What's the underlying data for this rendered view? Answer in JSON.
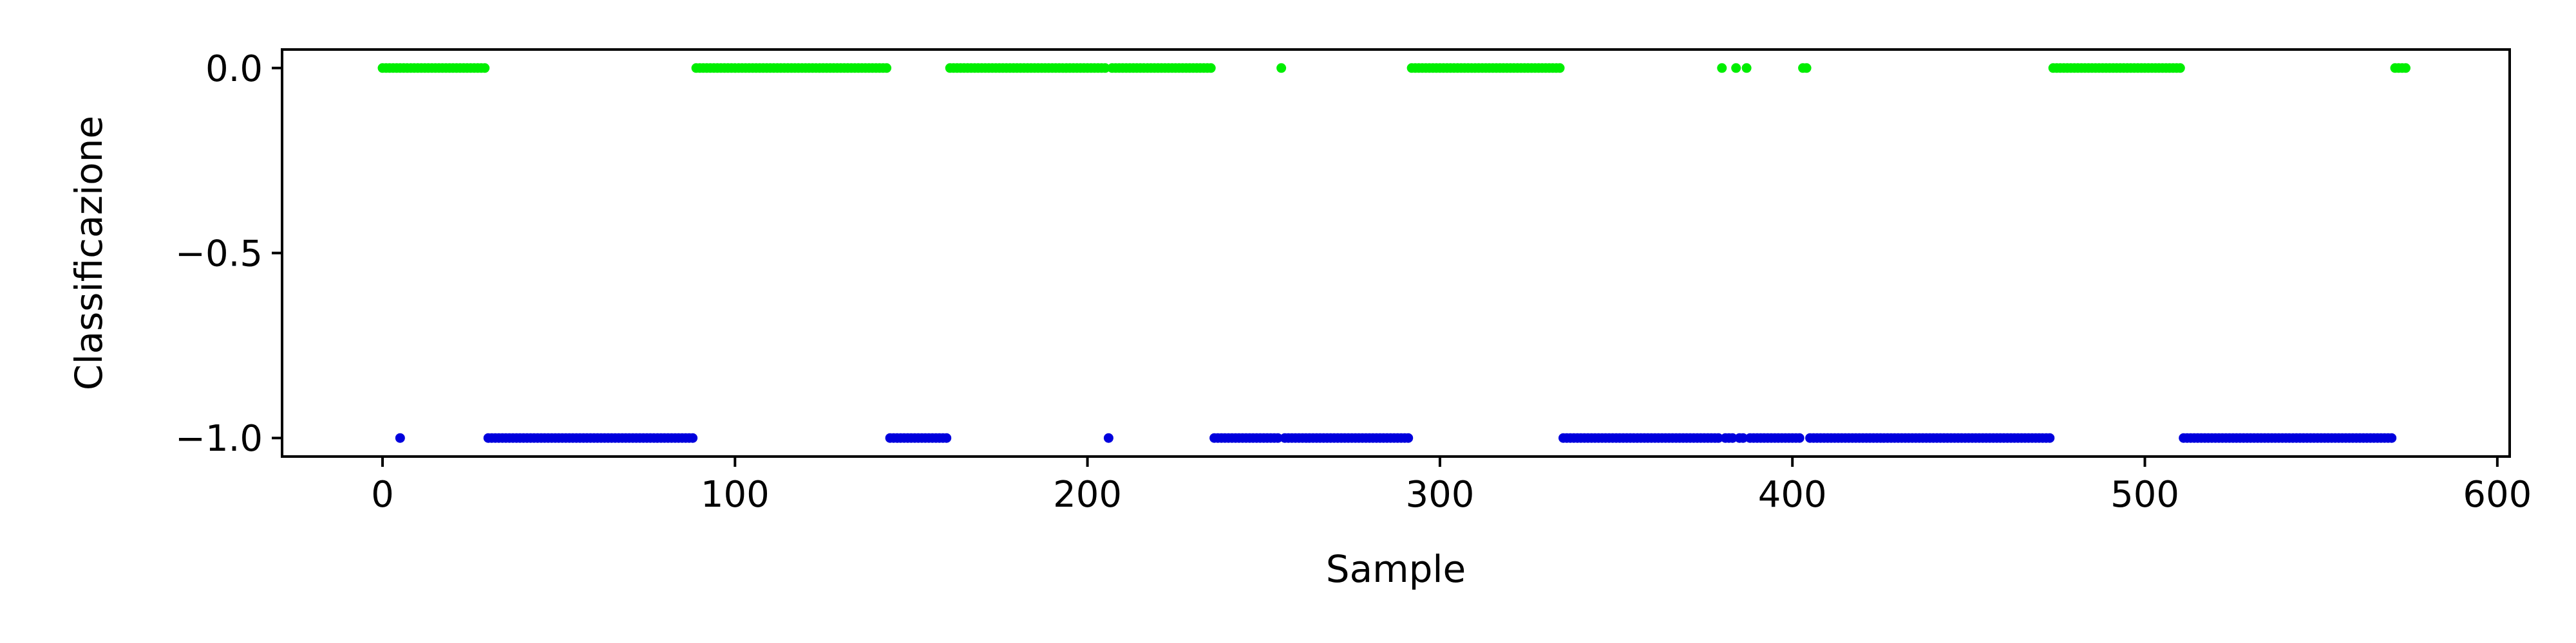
{
  "chart_data": {
    "type": "scatter",
    "title": "",
    "xlabel": "Sample",
    "ylabel": "Classificazione",
    "xlim": [
      -28.5,
      603.5
    ],
    "ylim": [
      -1.05,
      0.05
    ],
    "xticks": [
      0,
      100,
      200,
      300,
      400,
      500,
      600
    ],
    "xtick_labels": [
      "0",
      "100",
      "200",
      "300",
      "400",
      "500",
      "600"
    ],
    "yticks": [
      0.0,
      -0.5,
      -1.0
    ],
    "ytick_labels": [
      "0.0",
      "−0.5",
      "−1.0"
    ],
    "grid": false,
    "legend": "none",
    "series": [
      {
        "color": "#00ee00",
        "y": 0.0,
        "x": [
          0,
          1,
          2,
          3,
          4,
          5,
          6,
          7,
          8,
          9,
          10,
          11,
          12,
          13,
          14,
          15,
          16,
          17,
          18,
          19,
          20,
          21,
          22,
          23,
          24,
          25,
          26,
          27,
          28,
          29,
          89,
          90,
          91,
          92,
          93,
          94,
          95,
          96,
          97,
          98,
          99,
          100,
          101,
          102,
          103,
          104,
          105,
          106,
          107,
          108,
          109,
          110,
          111,
          112,
          113,
          114,
          115,
          116,
          117,
          118,
          119,
          120,
          121,
          122,
          123,
          124,
          125,
          126,
          127,
          128,
          129,
          130,
          131,
          132,
          133,
          134,
          135,
          136,
          137,
          138,
          139,
          140,
          141,
          142,
          143,
          161,
          162,
          163,
          164,
          165,
          166,
          167,
          168,
          169,
          170,
          171,
          172,
          173,
          174,
          175,
          176,
          177,
          178,
          179,
          180,
          181,
          182,
          183,
          184,
          185,
          186,
          187,
          188,
          189,
          190,
          191,
          192,
          193,
          194,
          195,
          196,
          197,
          198,
          199,
          200,
          201,
          202,
          203,
          204,
          205,
          207,
          208,
          209,
          210,
          211,
          212,
          213,
          214,
          215,
          216,
          217,
          218,
          219,
          220,
          221,
          222,
          223,
          224,
          225,
          226,
          227,
          228,
          229,
          230,
          231,
          232,
          233,
          234,
          235,
          255,
          292,
          293,
          294,
          295,
          296,
          297,
          298,
          299,
          300,
          301,
          302,
          303,
          304,
          305,
          306,
          307,
          308,
          309,
          310,
          311,
          312,
          313,
          314,
          315,
          316,
          317,
          318,
          319,
          320,
          321,
          322,
          323,
          324,
          325,
          326,
          327,
          328,
          329,
          330,
          331,
          332,
          333,
          334,
          380,
          384,
          387,
          403,
          404,
          474,
          475,
          476,
          477,
          478,
          479,
          480,
          481,
          482,
          483,
          484,
          485,
          486,
          487,
          488,
          489,
          490,
          491,
          492,
          493,
          494,
          495,
          496,
          497,
          498,
          499,
          500,
          501,
          502,
          503,
          504,
          505,
          506,
          507,
          508,
          509,
          510,
          571,
          572,
          573,
          574
        ]
      },
      {
        "color": "#0000dd",
        "y": -1.0,
        "x": [
          5,
          30,
          31,
          32,
          33,
          34,
          35,
          36,
          37,
          38,
          39,
          40,
          41,
          42,
          43,
          44,
          45,
          46,
          47,
          48,
          49,
          50,
          51,
          52,
          53,
          54,
          55,
          56,
          57,
          58,
          59,
          60,
          61,
          62,
          63,
          64,
          65,
          66,
          67,
          68,
          69,
          70,
          71,
          72,
          73,
          74,
          75,
          76,
          77,
          78,
          79,
          80,
          81,
          82,
          83,
          84,
          85,
          86,
          87,
          88,
          144,
          145,
          146,
          147,
          148,
          149,
          150,
          151,
          152,
          153,
          154,
          155,
          156,
          157,
          158,
          159,
          160,
          206,
          236,
          237,
          238,
          239,
          240,
          241,
          242,
          243,
          244,
          245,
          246,
          247,
          248,
          249,
          250,
          251,
          252,
          253,
          254,
          256,
          257,
          258,
          259,
          260,
          261,
          262,
          263,
          264,
          265,
          266,
          267,
          268,
          269,
          270,
          271,
          272,
          273,
          274,
          275,
          276,
          277,
          278,
          279,
          280,
          281,
          282,
          283,
          284,
          285,
          286,
          287,
          288,
          289,
          290,
          291,
          335,
          336,
          337,
          338,
          339,
          340,
          341,
          342,
          343,
          344,
          345,
          346,
          347,
          348,
          349,
          350,
          351,
          352,
          353,
          354,
          355,
          356,
          357,
          358,
          359,
          360,
          361,
          362,
          363,
          364,
          365,
          366,
          367,
          368,
          369,
          370,
          371,
          372,
          373,
          374,
          375,
          376,
          377,
          378,
          379,
          381,
          382,
          383,
          385,
          386,
          388,
          389,
          390,
          391,
          392,
          393,
          394,
          395,
          396,
          397,
          398,
          399,
          400,
          401,
          402,
          405,
          406,
          407,
          408,
          409,
          410,
          411,
          412,
          413,
          414,
          415,
          416,
          417,
          418,
          419,
          420,
          421,
          422,
          423,
          424,
          425,
          426,
          427,
          428,
          429,
          430,
          431,
          432,
          433,
          434,
          435,
          436,
          437,
          438,
          439,
          440,
          441,
          442,
          443,
          444,
          445,
          446,
          447,
          448,
          449,
          450,
          451,
          452,
          453,
          454,
          455,
          456,
          457,
          458,
          459,
          460,
          461,
          462,
          463,
          464,
          465,
          466,
          467,
          468,
          469,
          470,
          471,
          472,
          473,
          511,
          512,
          513,
          514,
          515,
          516,
          517,
          518,
          519,
          520,
          521,
          522,
          523,
          524,
          525,
          526,
          527,
          528,
          529,
          530,
          531,
          532,
          533,
          534,
          535,
          536,
          537,
          538,
          539,
          540,
          541,
          542,
          543,
          544,
          545,
          546,
          547,
          548,
          549,
          550,
          551,
          552,
          553,
          554,
          555,
          556,
          557,
          558,
          559,
          560,
          561,
          562,
          563,
          564,
          565,
          566,
          567,
          568,
          569,
          570
        ]
      }
    ]
  }
}
